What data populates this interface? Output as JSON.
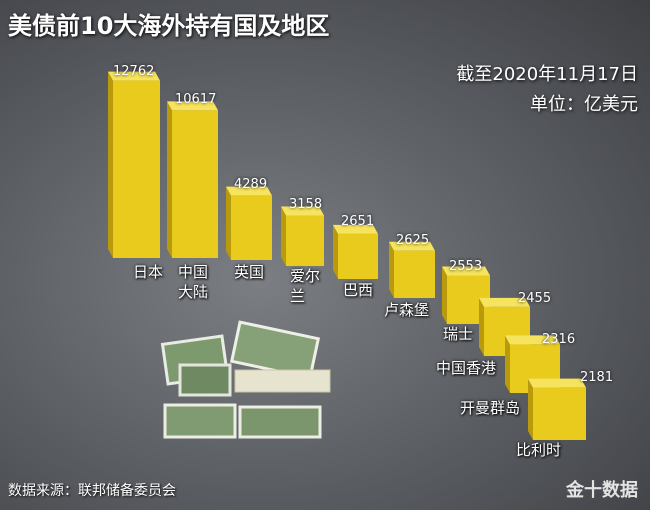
{
  "chart_data": {
    "type": "bar",
    "title": "美债前10大海外持有国及地区",
    "subtitle": "截至2020年11月17日",
    "unit": "单位：亿美元",
    "categories": [
      "日本",
      "中国大陆",
      "英国",
      "爱尔兰",
      "巴西",
      "卢森堡",
      "瑞士",
      "中国香港",
      "开曼群岛",
      "比利时"
    ],
    "values": [
      12762,
      10617,
      4289,
      3158,
      2651,
      2625,
      2553,
      2455,
      2316,
      2181
    ],
    "color": "#e8cb1c",
    "source": "数据来源：联邦储备委员会",
    "brand": "金十数据"
  }
}
